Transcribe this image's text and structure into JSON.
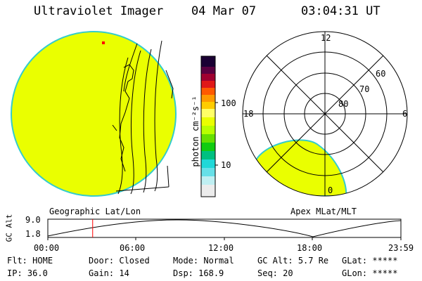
{
  "header": {
    "instrument": "Ultraviolet Imager",
    "date": "04 Mar 07",
    "time": "03:04:31 UT"
  },
  "colors": {
    "background": "#ffffff",
    "emission": "#eaff00",
    "rim": "#33cccc",
    "marker": "#ff0000"
  },
  "colorbar": {
    "label": "photon cm⁻²s⁻¹",
    "ticks": [
      "100",
      "10"
    ],
    "scale": "log"
  },
  "polar_plot": {
    "mlt_labels": [
      "12",
      "18",
      "6",
      "0"
    ],
    "lat_labels": [
      "60",
      "70",
      "80"
    ]
  },
  "orbit": {
    "left_label": "Geographic Lat/Lon",
    "right_label": "Apex MLat/MLT",
    "axis_label": "GC Alt",
    "y_ticks": [
      "9.0",
      "1.8"
    ],
    "x_ticks": [
      "00:00",
      "06:00",
      "12:00",
      "18:00",
      "23:59"
    ],
    "current_time_fraction": 0.127
  },
  "status": {
    "filter_label": "Flt:",
    "filter_value": "HOME",
    "door_label": "Door:",
    "door_value": "Closed",
    "mode_label": "Mode:",
    "mode_value": "Normal",
    "gcalt_label": "GC Alt:",
    "gcalt_value": "5.7 Re",
    "glat_label": "GLat:",
    "glat_value": "*****",
    "ip_label": "IP:",
    "ip_value": "36.0",
    "gain_label": "Gain:",
    "gain_value": "14",
    "dsp_label": "Dsp:",
    "dsp_value": "168.9",
    "seq_label": "Seq:",
    "seq_value": "20",
    "glon_label": "GLon:",
    "glon_value": "*****"
  }
}
